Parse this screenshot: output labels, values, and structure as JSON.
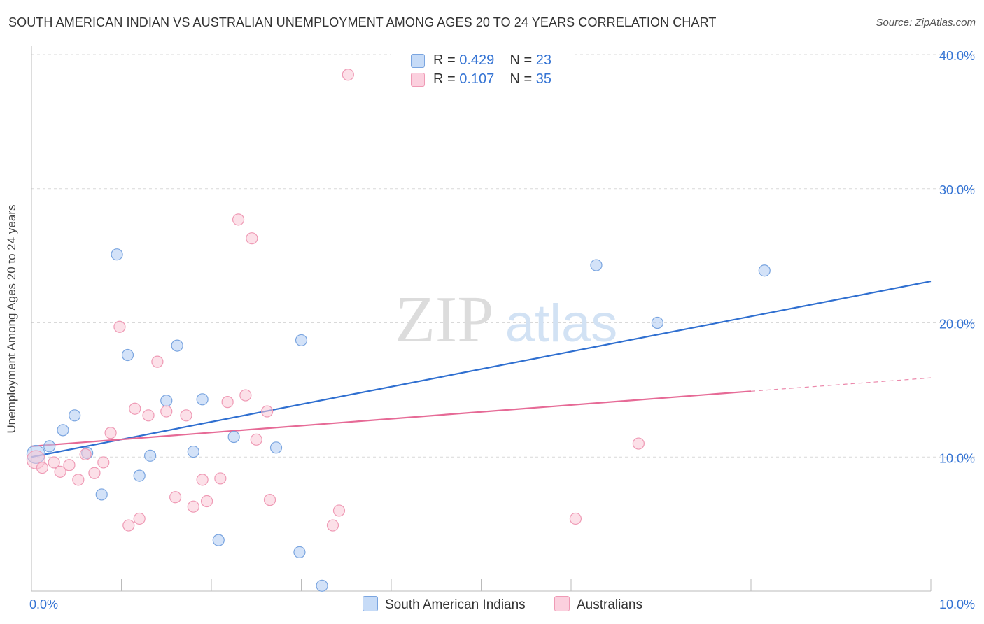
{
  "title": "SOUTH AMERICAN INDIAN VS AUSTRALIAN UNEMPLOYMENT AMONG AGES 20 TO 24 YEARS CORRELATION CHART",
  "source": "Source: ZipAtlas.com",
  "watermark": {
    "zip": "ZIP",
    "atlas": "atlas"
  },
  "legend": {
    "r_label": "R =",
    "n_label": "N =",
    "rows": [
      {
        "r": "0.429",
        "n": "23",
        "color": "#aecbf3"
      },
      {
        "r": "0.107",
        "n": "35",
        "color": "#f9bdd0"
      }
    ]
  },
  "bottom_legend": [
    {
      "label": "South American Indians",
      "color": "#aecbf3"
    },
    {
      "label": "Australians",
      "color": "#f9bdd0"
    }
  ],
  "colors": {
    "blue_fill": "#aecbf3",
    "blue_stroke": "#7aa5e0",
    "blue_line": "#2f6fd0",
    "pink_fill": "#f9c6d6",
    "pink_stroke": "#ef9ab5",
    "pink_line": "#e66a96",
    "tick_text": "#3574d4",
    "grid": "#d9d9d9"
  },
  "chart_data": {
    "type": "scatter",
    "title": "SOUTH AMERICAN INDIAN VS AUSTRALIAN UNEMPLOYMENT AMONG AGES 20 TO 24 YEARS CORRELATION CHART",
    "xlabel": "",
    "ylabel": "Unemployment Among Ages 20 to 24 years",
    "xlim": [
      0,
      10
    ],
    "ylim": [
      0,
      40
    ],
    "x_tick_labels": [
      {
        "x": 0,
        "label": "0.0%"
      },
      {
        "x": 10,
        "label": "10.0%"
      }
    ],
    "y_tick_labels": [
      {
        "y": 10,
        "label": "10.0%"
      },
      {
        "y": 20,
        "label": "20.0%"
      },
      {
        "y": 30,
        "label": "30.0%"
      },
      {
        "y": 40,
        "label": "40.0%"
      }
    ],
    "x_minor_ticks": [
      1,
      2,
      3,
      4,
      5,
      6,
      7,
      8,
      9,
      10
    ],
    "series": [
      {
        "name": "South American Indians",
        "points": [
          {
            "x": 0.05,
            "y": 10.2,
            "big": true
          },
          {
            "x": 0.2,
            "y": 10.8
          },
          {
            "x": 0.35,
            "y": 12.0
          },
          {
            "x": 0.48,
            "y": 13.1
          },
          {
            "x": 0.62,
            "y": 10.3
          },
          {
            "x": 0.78,
            "y": 7.2
          },
          {
            "x": 0.95,
            "y": 25.1
          },
          {
            "x": 1.07,
            "y": 17.6
          },
          {
            "x": 1.2,
            "y": 8.6
          },
          {
            "x": 1.32,
            "y": 10.1
          },
          {
            "x": 1.5,
            "y": 14.2
          },
          {
            "x": 1.62,
            "y": 18.3
          },
          {
            "x": 1.8,
            "y": 10.4
          },
          {
            "x": 1.9,
            "y": 14.3
          },
          {
            "x": 2.08,
            "y": 3.8
          },
          {
            "x": 2.25,
            "y": 11.5
          },
          {
            "x": 2.72,
            "y": 10.7
          },
          {
            "x": 2.98,
            "y": 2.9
          },
          {
            "x": 3.0,
            "y": 18.7
          },
          {
            "x": 3.23,
            "y": 0.4
          },
          {
            "x": 6.28,
            "y": 24.3
          },
          {
            "x": 6.96,
            "y": 20.0
          },
          {
            "x": 8.15,
            "y": 23.9
          }
        ],
        "trend": {
          "x0": 0,
          "y0": 10.0,
          "x1": 10,
          "y1": 23.1
        }
      },
      {
        "name": "Australians",
        "points": [
          {
            "x": 0.05,
            "y": 9.8,
            "big": true
          },
          {
            "x": 0.12,
            "y": 9.2
          },
          {
            "x": 0.25,
            "y": 9.6
          },
          {
            "x": 0.32,
            "y": 8.9
          },
          {
            "x": 0.42,
            "y": 9.4
          },
          {
            "x": 0.52,
            "y": 8.3
          },
          {
            "x": 0.6,
            "y": 10.2
          },
          {
            "x": 0.7,
            "y": 8.8
          },
          {
            "x": 0.8,
            "y": 9.6
          },
          {
            "x": 0.88,
            "y": 11.8
          },
          {
            "x": 0.98,
            "y": 19.7
          },
          {
            "x": 1.08,
            "y": 4.9
          },
          {
            "x": 1.15,
            "y": 13.6
          },
          {
            "x": 1.2,
            "y": 5.4
          },
          {
            "x": 1.3,
            "y": 13.1
          },
          {
            "x": 1.4,
            "y": 17.1
          },
          {
            "x": 1.5,
            "y": 13.4
          },
          {
            "x": 1.6,
            "y": 7.0
          },
          {
            "x": 1.72,
            "y": 13.1
          },
          {
            "x": 1.8,
            "y": 6.3
          },
          {
            "x": 1.9,
            "y": 8.3
          },
          {
            "x": 1.95,
            "y": 6.7
          },
          {
            "x": 2.1,
            "y": 8.4
          },
          {
            "x": 2.18,
            "y": 14.1
          },
          {
            "x": 2.3,
            "y": 27.7
          },
          {
            "x": 2.38,
            "y": 14.6
          },
          {
            "x": 2.45,
            "y": 26.3
          },
          {
            "x": 2.5,
            "y": 11.3
          },
          {
            "x": 2.62,
            "y": 13.4
          },
          {
            "x": 2.65,
            "y": 6.8
          },
          {
            "x": 3.35,
            "y": 4.9
          },
          {
            "x": 3.42,
            "y": 6.0
          },
          {
            "x": 3.52,
            "y": 38.5
          },
          {
            "x": 6.05,
            "y": 5.4
          },
          {
            "x": 6.75,
            "y": 11.0
          }
        ],
        "trend": {
          "x0": 0,
          "y0": 10.8,
          "x1": 8.0,
          "y1": 14.9,
          "dash_x1": 10,
          "dash_y1": 15.9
        }
      }
    ]
  }
}
